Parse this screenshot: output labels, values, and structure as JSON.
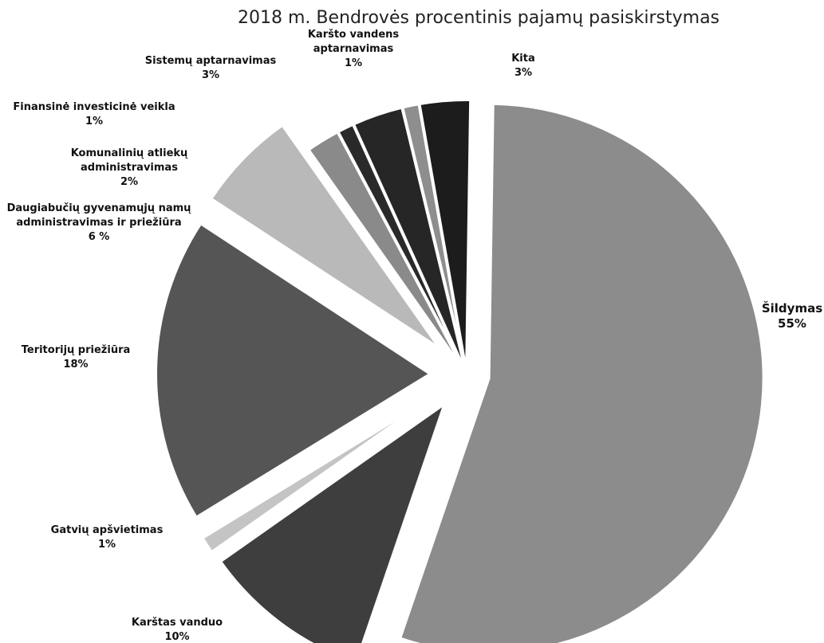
{
  "chart_data": {
    "type": "pie",
    "title": "2018 m. Bendrovės procentinis pajamų pasiskirstymas",
    "slices": [
      {
        "label": [
          "Šildymas"
        ],
        "value": 55,
        "value_label": "55%",
        "color": "#8c8c8c",
        "exploded": true
      },
      {
        "label": [
          "Karštas vanduo"
        ],
        "value": 10,
        "value_label": "10%",
        "color": "#3e3e3e",
        "exploded": true
      },
      {
        "label": [
          "Gatvių apšvietimas"
        ],
        "value": 1,
        "value_label": "1%",
        "color": "#c4c4c4",
        "exploded": true
      },
      {
        "label": [
          "Teritorijų priežiūra"
        ],
        "value": 18,
        "value_label": "18%",
        "color": "#555555",
        "exploded": true
      },
      {
        "label": [
          "Daugiabučių gyvenamųjų namų",
          "administravimas ir priežiūra"
        ],
        "value": 6,
        "value_label": "6 %",
        "color": "#b9b9b9",
        "exploded": true
      },
      {
        "label": [
          "Komunalinių atliekų",
          "administravimas"
        ],
        "value": 2,
        "value_label": "2%",
        "color": "#8a8a8a",
        "exploded": false
      },
      {
        "label": [
          "Finansinė investicinė veikla"
        ],
        "value": 1,
        "value_label": "1%",
        "color": "#2a2a2a",
        "exploded": false
      },
      {
        "label": [
          "Sistemų aptarnavimas"
        ],
        "value": 3,
        "value_label": "3%",
        "color": "#262626",
        "exploded": false
      },
      {
        "label": [
          "Karšto vandens",
          "aptarnavimas"
        ],
        "value": 1,
        "value_label": "1%",
        "color": "#8e8e8e",
        "exploded": false
      },
      {
        "label": [
          "Kita"
        ],
        "value": 3,
        "value_label": "3%",
        "color": "#1c1c1c",
        "exploded": false
      }
    ]
  }
}
